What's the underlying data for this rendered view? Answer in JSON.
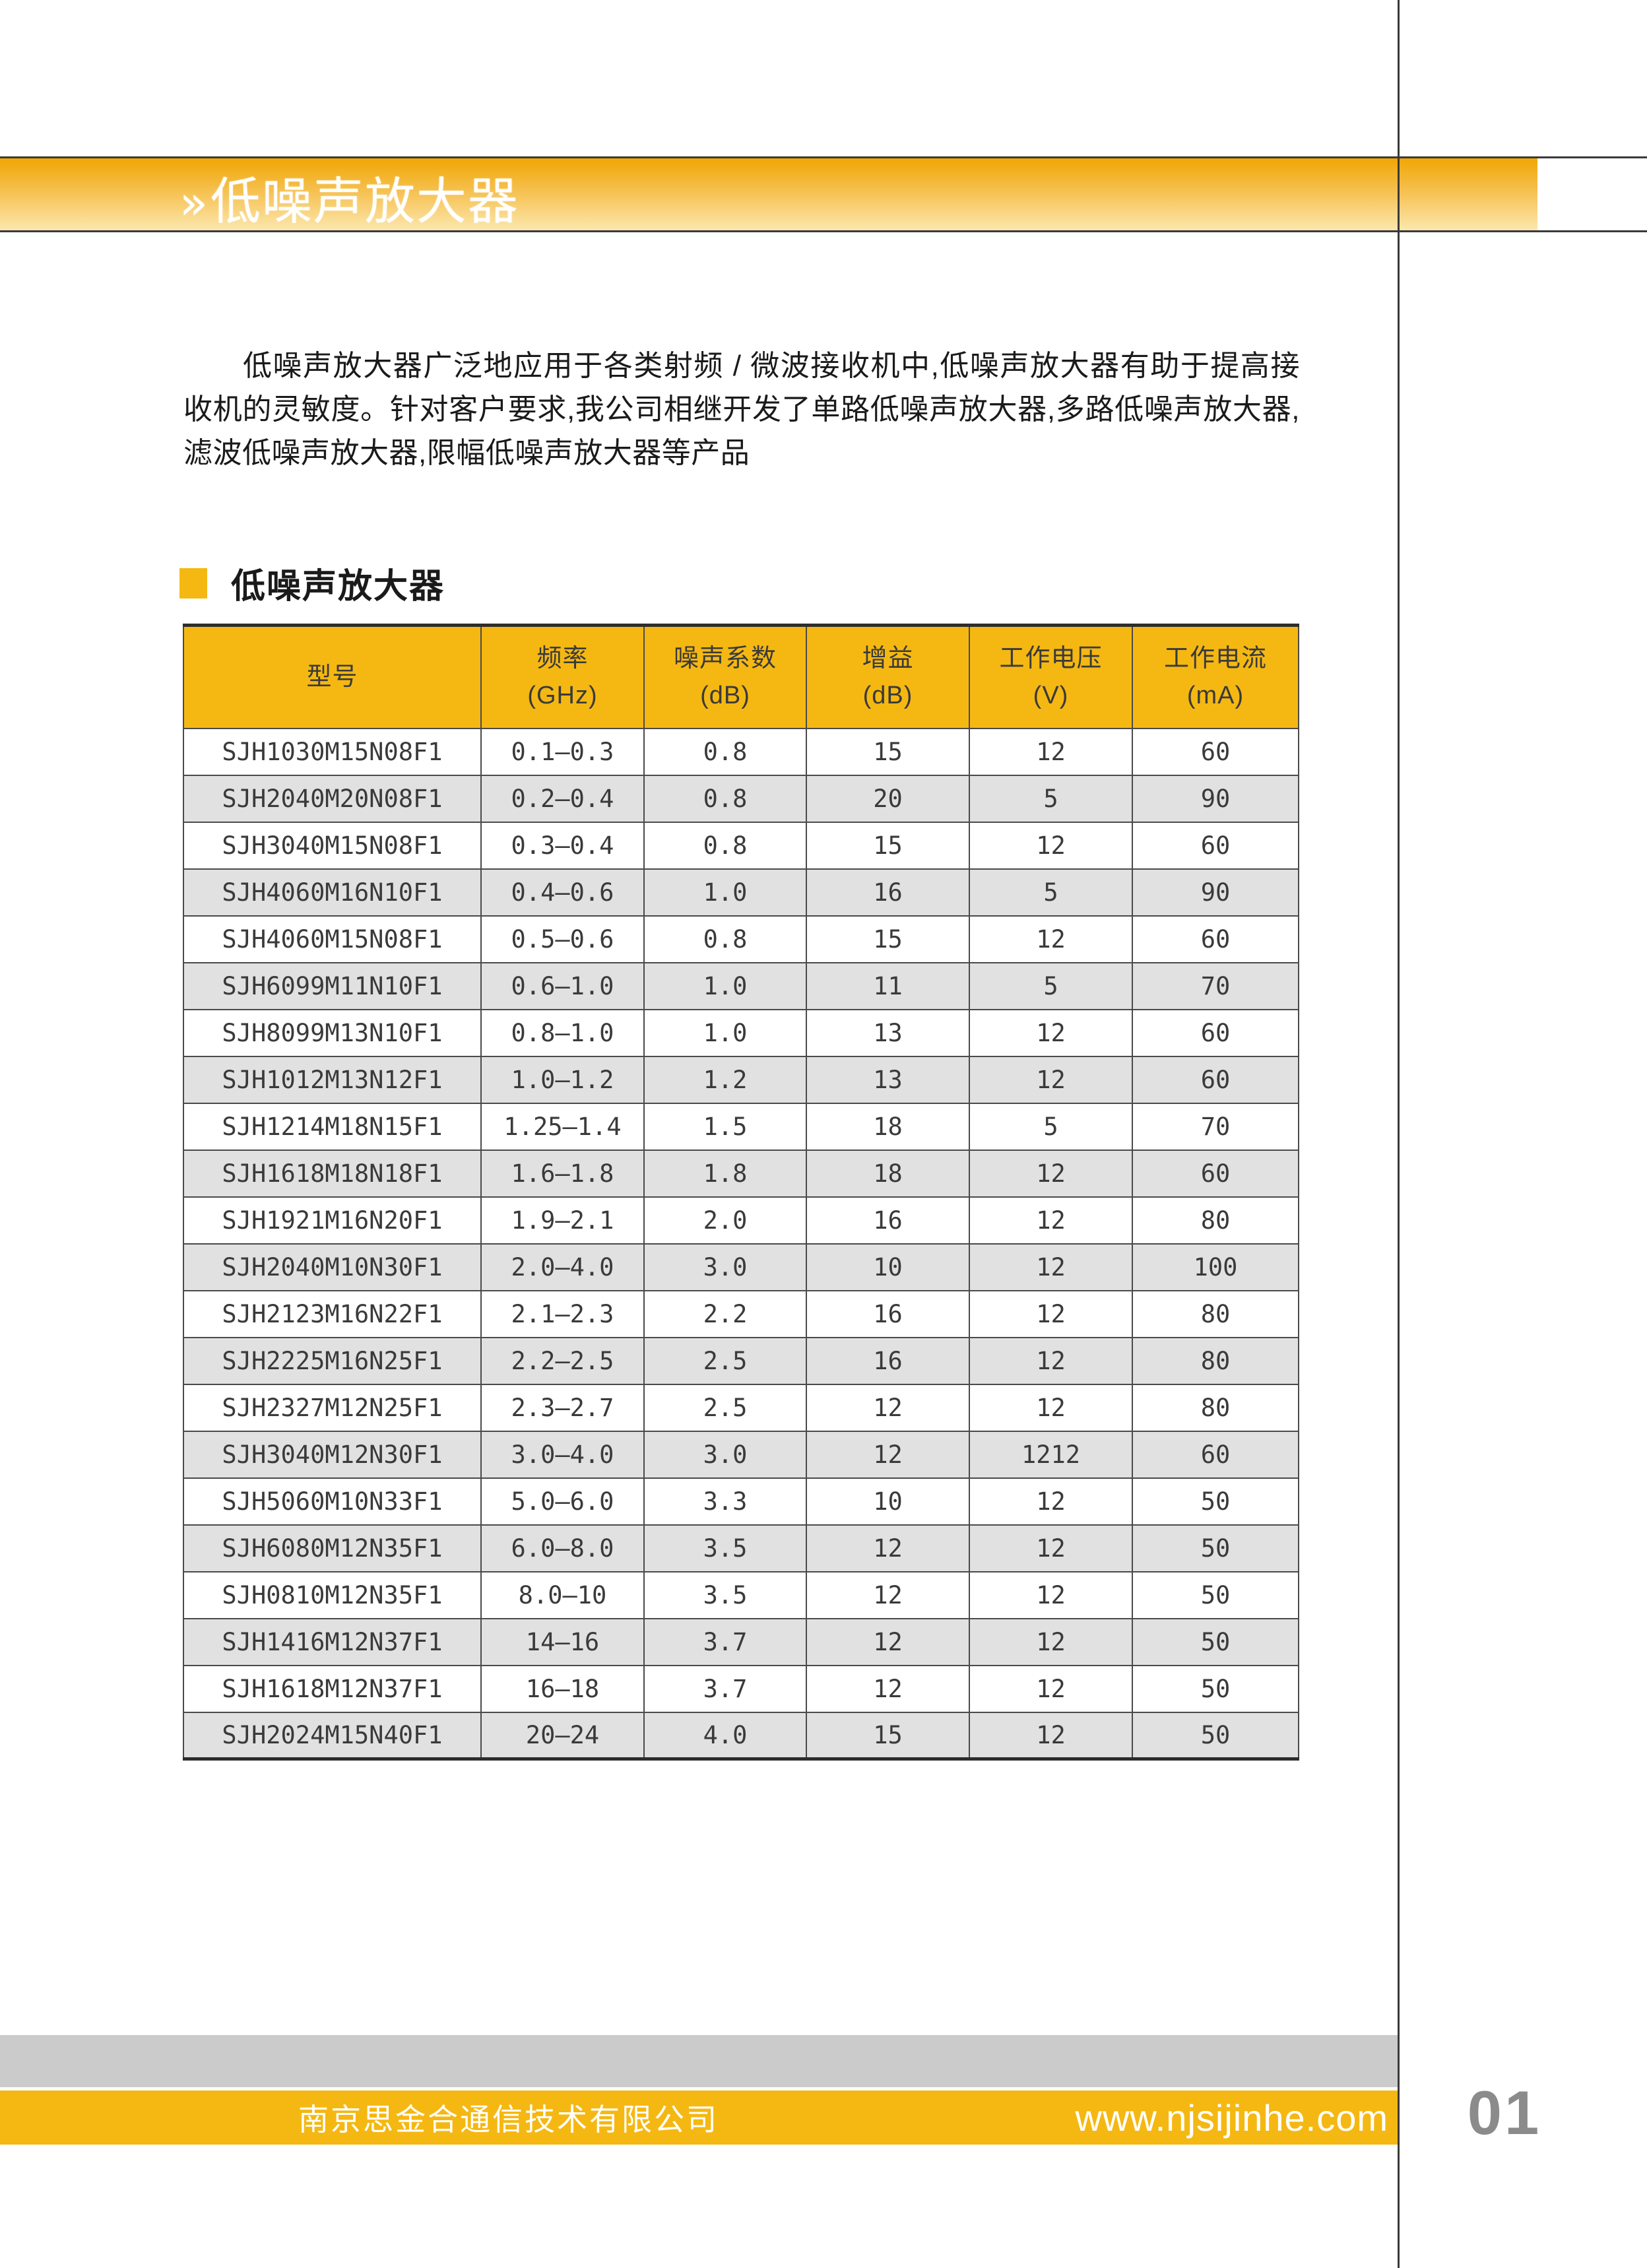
{
  "banner": {
    "chevron": "»",
    "title": "低噪声放大器"
  },
  "intro": "低噪声放大器广泛地应用于各类射频 / 微波接收机中,低噪声放大器有助于提高接收机的灵敏度。针对客户要求,我公司相继开发了单路低噪声放大器,多路低噪声放大器,滤波低噪声放大器,限幅低噪声放大器等产品",
  "section": {
    "title": "低噪声放大器"
  },
  "table": {
    "column_keys": [
      "model",
      "frequency_ghz",
      "noise_figure_db",
      "gain_db",
      "voltage_v",
      "current_ma"
    ],
    "columns": [
      {
        "label": "型号",
        "unit": ""
      },
      {
        "label": "频率",
        "unit": "(GHz)"
      },
      {
        "label": "噪声系数",
        "unit": "(dB)"
      },
      {
        "label": "增益",
        "unit": "(dB)"
      },
      {
        "label": "工作电压",
        "unit": "(V)"
      },
      {
        "label": "工作电流",
        "unit": "(mA)"
      }
    ],
    "rows": [
      [
        "SJH1030M15N08F1",
        "0.1–0.3",
        "0.8",
        "15",
        "12",
        "60"
      ],
      [
        "SJH2040M20N08F1",
        "0.2–0.4",
        "0.8",
        "20",
        "5",
        "90"
      ],
      [
        "SJH3040M15N08F1",
        "0.3–0.4",
        "0.8",
        "15",
        "12",
        "60"
      ],
      [
        "SJH4060M16N10F1",
        "0.4–0.6",
        "1.0",
        "16",
        "5",
        "90"
      ],
      [
        "SJH4060M15N08F1",
        "0.5–0.6",
        "0.8",
        "15",
        "12",
        "60"
      ],
      [
        "SJH6099M11N10F1",
        "0.6–1.0",
        "1.0",
        "11",
        "5",
        "70"
      ],
      [
        "SJH8099M13N10F1",
        "0.8–1.0",
        "1.0",
        "13",
        "12",
        "60"
      ],
      [
        "SJH1012M13N12F1",
        "1.0–1.2",
        "1.2",
        "13",
        "12",
        "60"
      ],
      [
        "SJH1214M18N15F1",
        "1.25–1.4",
        "1.5",
        "18",
        "5",
        "70"
      ],
      [
        "SJH1618M18N18F1",
        "1.6–1.8",
        "1.8",
        "18",
        "12",
        "60"
      ],
      [
        "SJH1921M16N20F1",
        "1.9–2.1",
        "2.0",
        "16",
        "12",
        "80"
      ],
      [
        "SJH2040M10N30F1",
        "2.0–4.0",
        "3.0",
        "10",
        "12",
        "100"
      ],
      [
        "SJH2123M16N22F1",
        "2.1–2.3",
        "2.2",
        "16",
        "12",
        "80"
      ],
      [
        "SJH2225M16N25F1",
        "2.2–2.5",
        "2.5",
        "16",
        "12",
        "80"
      ],
      [
        "SJH2327M12N25F1",
        "2.3–2.7",
        "2.5",
        "12",
        "12",
        "80"
      ],
      [
        "SJH3040M12N30F1",
        "3.0–4.0",
        "3.0",
        "12",
        "1212",
        "60"
      ],
      [
        "SJH5060M10N33F1",
        "5.0–6.0",
        "3.3",
        "10",
        "12",
        "50"
      ],
      [
        "SJH6080M12N35F1",
        "6.0–8.0",
        "3.5",
        "12",
        "12",
        "50"
      ],
      [
        "SJH0810M12N35F1",
        "8.0–10",
        "3.5",
        "12",
        "12",
        "50"
      ],
      [
        "SJH1416M12N37F1",
        "14–16",
        "3.7",
        "12",
        "12",
        "50"
      ],
      [
        "SJH1618M12N37F1",
        "16–18",
        "3.7",
        "12",
        "12",
        "50"
      ],
      [
        "SJH2024M15N40F1",
        "20–24",
        "4.0",
        "15",
        "12",
        "50"
      ]
    ]
  },
  "footer": {
    "company": "南京思金合通信技术有限公司",
    "website": "www.njsijinhe.com",
    "page_number": "01"
  },
  "colors": {
    "accent_yellow": "#F5B812",
    "banner_top": "#F1A603",
    "banner_bottom": "#FCE7AE",
    "row_alt": "#E1E1E1",
    "footer_gray": "#CBCBCB",
    "page_number_gray": "#8B8B8B"
  }
}
